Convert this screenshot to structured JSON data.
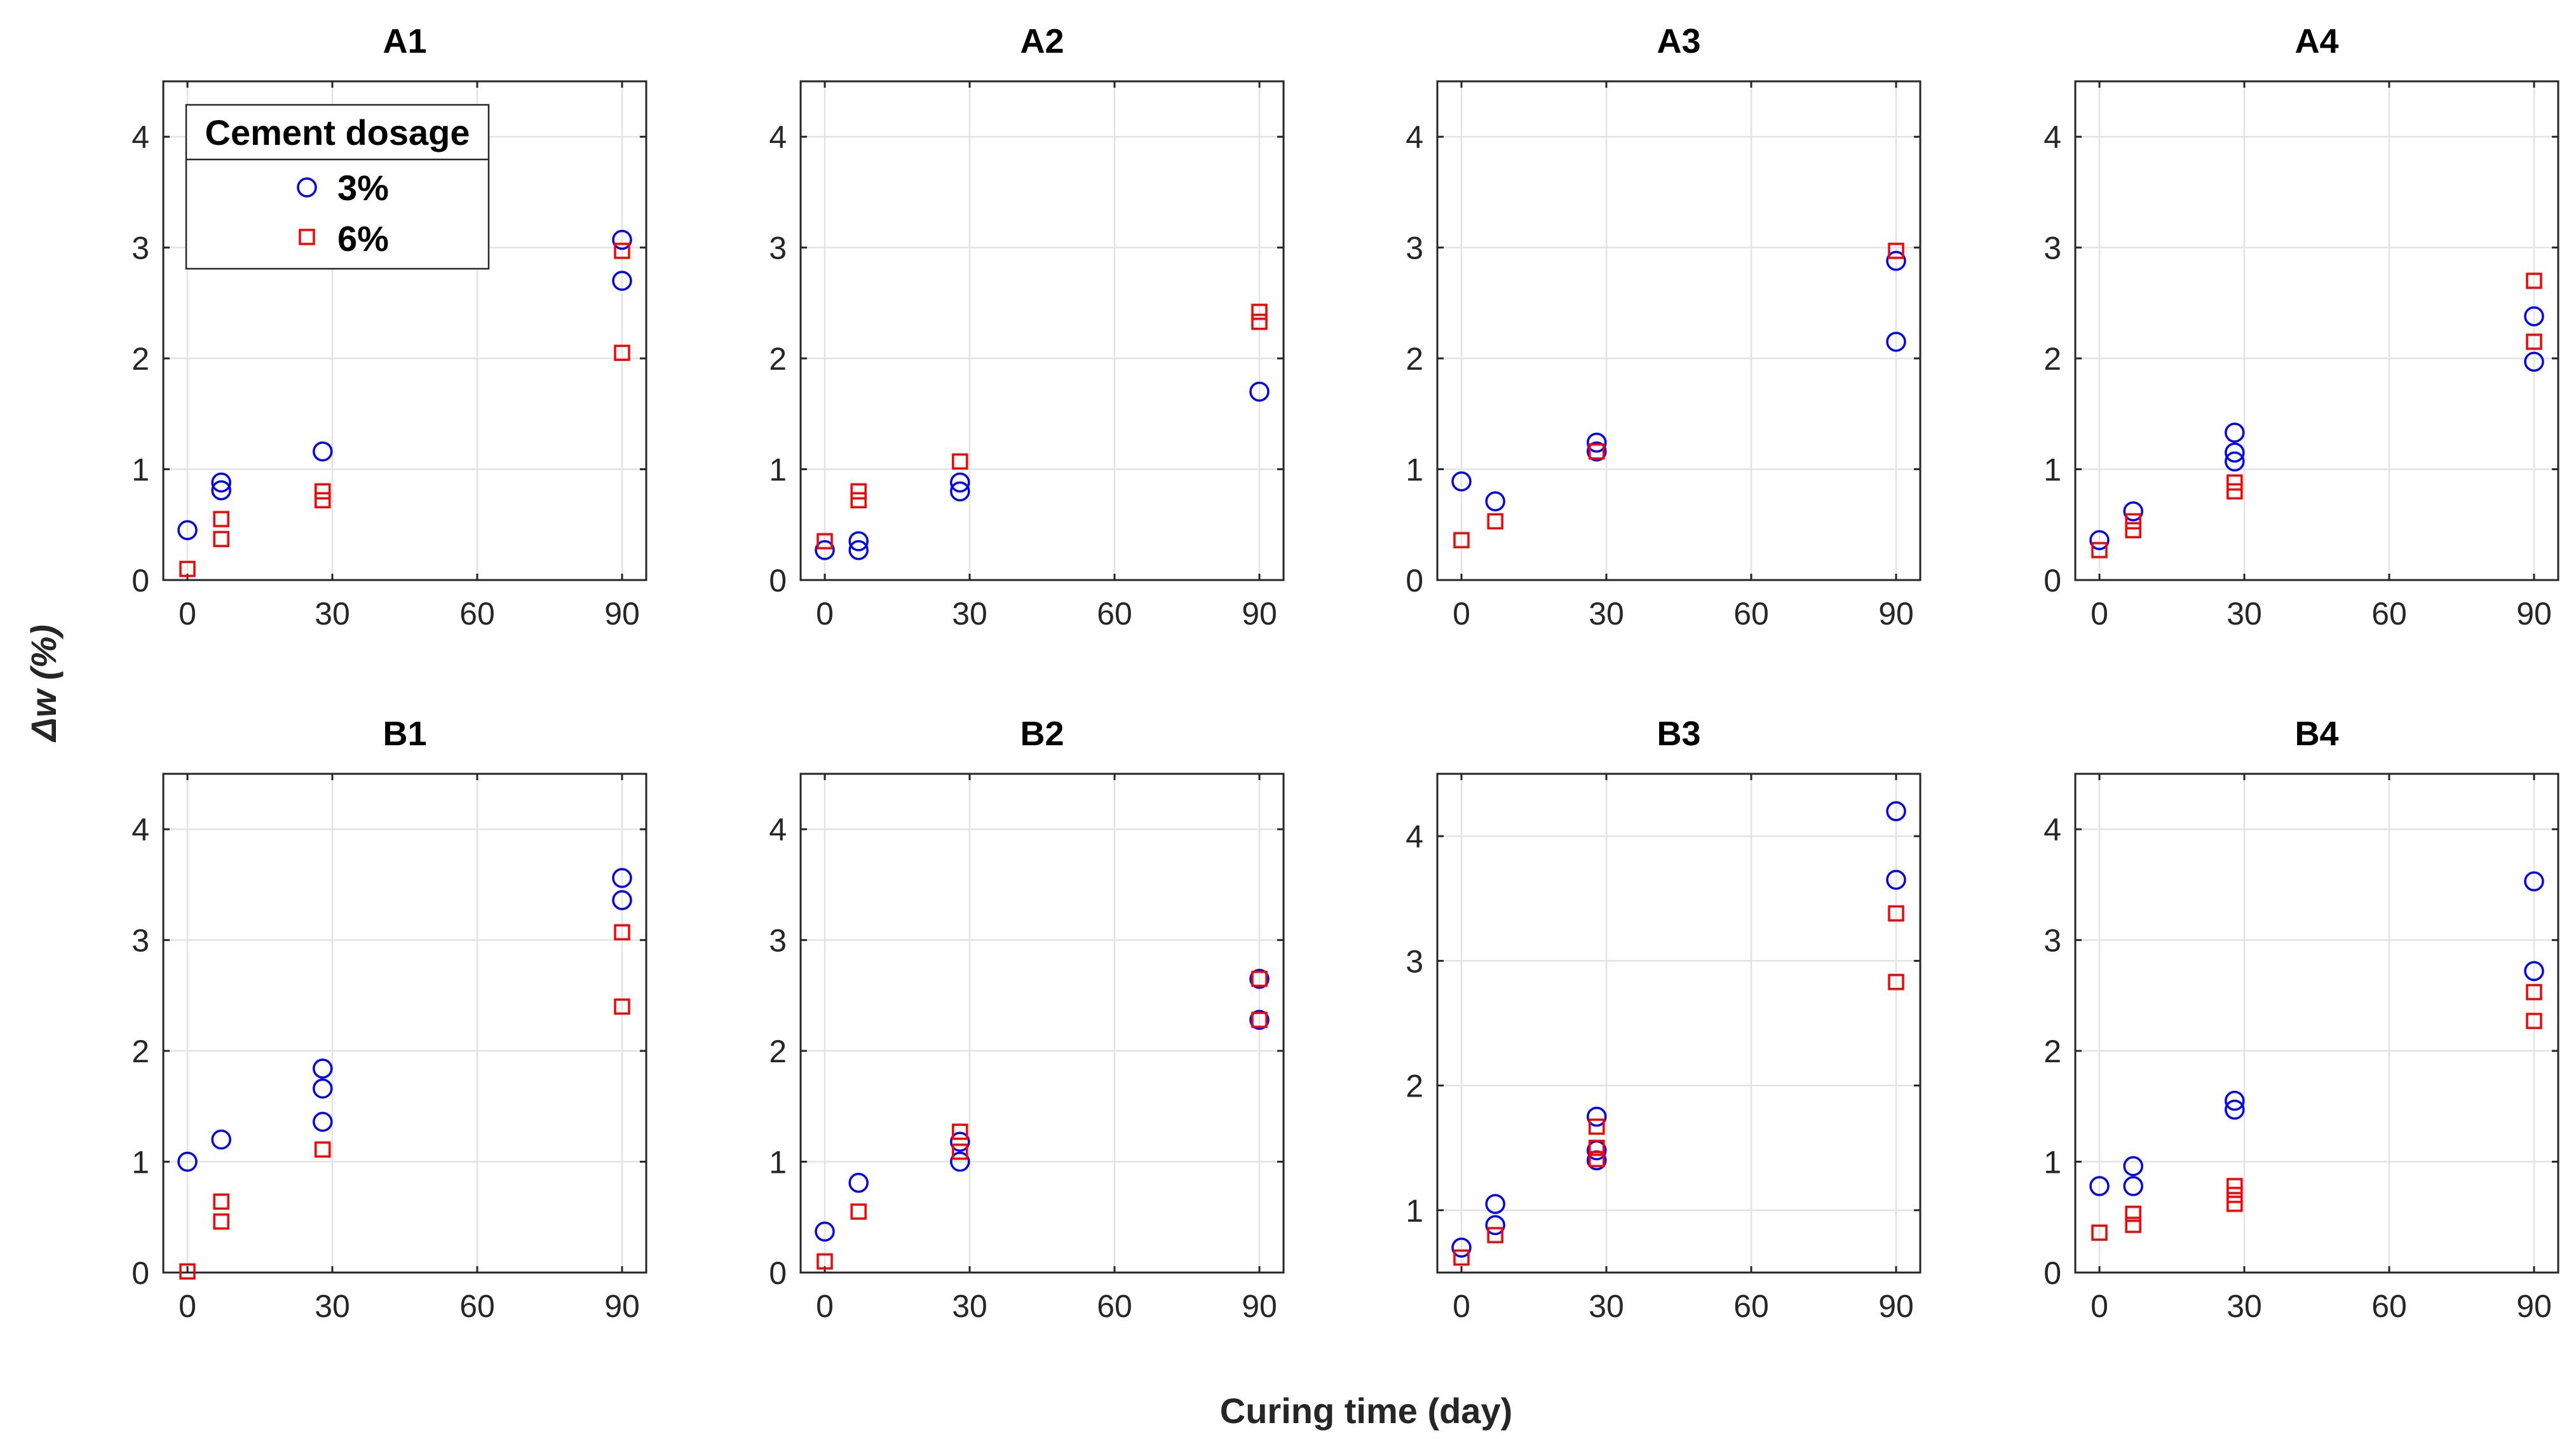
{
  "colors": {
    "series_3": "#0000ff",
    "series_6": "#ff0000"
  },
  "chart_data": {
    "type": "scatter",
    "xlabel": "Curing time (day)",
    "ylabel": "Δw (%)",
    "xticks": [
      0,
      30,
      60,
      90
    ],
    "xlim": [
      -5,
      95
    ],
    "legend": {
      "title": "Cement dosage",
      "placement": "top-left of panel A1",
      "entries": [
        {
          "key": "3",
          "label": "3%",
          "marker": "circle"
        },
        {
          "key": "6",
          "label": "6%",
          "marker": "square"
        }
      ]
    },
    "panels": [
      {
        "title": "A1",
        "ylim": [
          0,
          4.5
        ],
        "yticks": [
          0,
          1,
          2,
          3,
          4
        ],
        "series": [
          {
            "key": "3",
            "name": "3%",
            "points": [
              [
                0,
                0.45
              ],
              [
                7,
                0.88
              ],
              [
                7,
                0.81
              ],
              [
                28,
                1.16
              ],
              [
                90,
                3.07
              ],
              [
                90,
                2.7
              ]
            ]
          },
          {
            "key": "6",
            "name": "6%",
            "points": [
              [
                0,
                0.1
              ],
              [
                7,
                0.55
              ],
              [
                7,
                0.37
              ],
              [
                28,
                0.8
              ],
              [
                28,
                0.72
              ],
              [
                90,
                2.97
              ],
              [
                90,
                2.05
              ]
            ]
          }
        ]
      },
      {
        "title": "A2",
        "ylim": [
          0,
          4.5
        ],
        "yticks": [
          0,
          1,
          2,
          3,
          4
        ],
        "series": [
          {
            "key": "3",
            "name": "3%",
            "points": [
              [
                0,
                0.27
              ],
              [
                7,
                0.35
              ],
              [
                7,
                0.27
              ],
              [
                28,
                0.88
              ],
              [
                28,
                0.8
              ],
              [
                90,
                1.7
              ]
            ]
          },
          {
            "key": "6",
            "name": "6%",
            "points": [
              [
                0,
                0.35
              ],
              [
                7,
                0.8
              ],
              [
                7,
                0.72
              ],
              [
                28,
                1.07
              ],
              [
                90,
                2.42
              ],
              [
                90,
                2.33
              ]
            ]
          }
        ]
      },
      {
        "title": "A3",
        "ylim": [
          0,
          4.5
        ],
        "yticks": [
          0,
          1,
          2,
          3,
          4
        ],
        "series": [
          {
            "key": "3",
            "name": "3%",
            "points": [
              [
                0,
                0.89
              ],
              [
                7,
                0.71
              ],
              [
                28,
                1.24
              ],
              [
                28,
                1.16
              ],
              [
                90,
                2.88
              ],
              [
                90,
                2.15
              ]
            ]
          },
          {
            "key": "6",
            "name": "6%",
            "points": [
              [
                0,
                0.36
              ],
              [
                7,
                0.53
              ],
              [
                28,
                1.16
              ],
              [
                90,
                2.97
              ]
            ]
          }
        ]
      },
      {
        "title": "A4",
        "ylim": [
          0,
          4.5
        ],
        "yticks": [
          0,
          1,
          2,
          3,
          4
        ],
        "series": [
          {
            "key": "3",
            "name": "3%",
            "points": [
              [
                0,
                0.36
              ],
              [
                7,
                0.62
              ],
              [
                28,
                1.33
              ],
              [
                28,
                1.15
              ],
              [
                28,
                1.07
              ],
              [
                90,
                2.38
              ],
              [
                90,
                1.97
              ]
            ]
          },
          {
            "key": "6",
            "name": "6%",
            "points": [
              [
                0,
                0.27
              ],
              [
                7,
                0.53
              ],
              [
                7,
                0.45
              ],
              [
                28,
                0.88
              ],
              [
                28,
                0.8
              ],
              [
                90,
                2.7
              ],
              [
                90,
                2.15
              ]
            ]
          }
        ]
      },
      {
        "title": "B1",
        "ylim": [
          0,
          4.5
        ],
        "yticks": [
          0,
          1,
          2,
          3,
          4
        ],
        "series": [
          {
            "key": "3",
            "name": "3%",
            "points": [
              [
                0,
                1.0
              ],
              [
                7,
                1.2
              ],
              [
                28,
                1.84
              ],
              [
                28,
                1.66
              ],
              [
                28,
                1.36
              ],
              [
                90,
                3.56
              ],
              [
                90,
                3.36
              ]
            ]
          },
          {
            "key": "6",
            "name": "6%",
            "points": [
              [
                0,
                0.01
              ],
              [
                7,
                0.64
              ],
              [
                7,
                0.46
              ],
              [
                28,
                1.11
              ],
              [
                90,
                3.07
              ],
              [
                90,
                2.4
              ]
            ]
          }
        ]
      },
      {
        "title": "B2",
        "ylim": [
          0,
          4.5
        ],
        "yticks": [
          0,
          1,
          2,
          3,
          4
        ],
        "series": [
          {
            "key": "3",
            "name": "3%",
            "points": [
              [
                0,
                0.37
              ],
              [
                7,
                0.81
              ],
              [
                28,
                1.18
              ],
              [
                28,
                1.0
              ],
              [
                90,
                2.65
              ],
              [
                90,
                2.28
              ]
            ]
          },
          {
            "key": "6",
            "name": "6%",
            "points": [
              [
                0,
                0.1
              ],
              [
                7,
                0.55
              ],
              [
                28,
                1.27
              ],
              [
                28,
                1.09
              ],
              [
                90,
                2.65
              ],
              [
                90,
                2.28
              ]
            ]
          }
        ]
      },
      {
        "title": "B3",
        "ylim": [
          0.5,
          4.5
        ],
        "yticks": [
          1,
          2,
          3,
          4
        ],
        "series": [
          {
            "key": "3",
            "name": "3%",
            "points": [
              [
                0,
                0.7
              ],
              [
                7,
                1.05
              ],
              [
                7,
                0.88
              ],
              [
                28,
                1.75
              ],
              [
                28,
                1.48
              ],
              [
                28,
                1.4
              ],
              [
                90,
                4.2
              ],
              [
                90,
                3.65
              ]
            ]
          },
          {
            "key": "6",
            "name": "6%",
            "points": [
              [
                0,
                0.62
              ],
              [
                7,
                0.8
              ],
              [
                28,
                1.67
              ],
              [
                28,
                1.5
              ],
              [
                28,
                1.41
              ],
              [
                90,
                3.38
              ],
              [
                90,
                2.83
              ]
            ]
          }
        ]
      },
      {
        "title": "B4",
        "ylim": [
          0,
          4.5
        ],
        "yticks": [
          0,
          1,
          2,
          3,
          4
        ],
        "series": [
          {
            "key": "3",
            "name": "3%",
            "points": [
              [
                0,
                0.78
              ],
              [
                7,
                0.96
              ],
              [
                7,
                0.78
              ],
              [
                28,
                1.55
              ],
              [
                28,
                1.47
              ],
              [
                90,
                3.53
              ],
              [
                90,
                2.72
              ]
            ]
          },
          {
            "key": "6",
            "name": "6%",
            "points": [
              [
                0,
                0.36
              ],
              [
                7,
                0.53
              ],
              [
                7,
                0.43
              ],
              [
                28,
                0.78
              ],
              [
                28,
                0.7
              ],
              [
                28,
                0.62
              ],
              [
                90,
                2.53
              ],
              [
                90,
                2.27
              ]
            ]
          }
        ]
      }
    ]
  }
}
